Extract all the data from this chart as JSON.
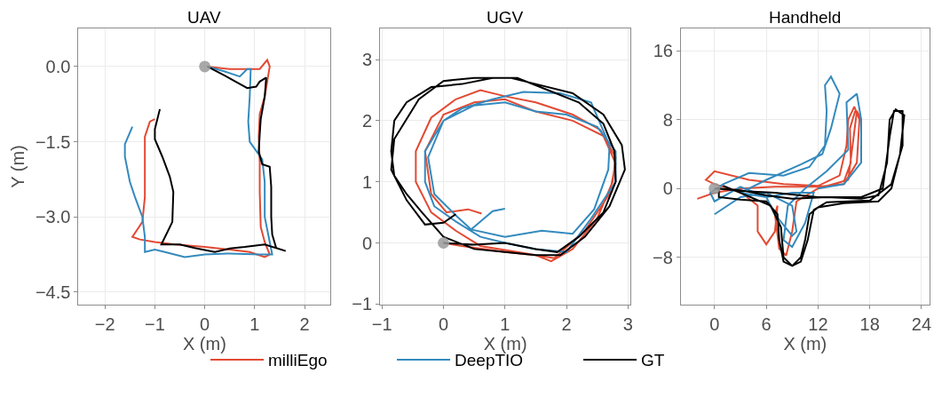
{
  "chart_data": [
    {
      "type": "line",
      "title": "UAV",
      "xlabel": "X (m)",
      "ylabel": "Y (m)",
      "xlim": [
        -2.53,
        2.52
      ],
      "ylim": [
        -4.75,
        0.76
      ],
      "xticks": [
        -2,
        -1,
        0,
        1,
        2
      ],
      "yticks": [
        -4.5,
        {
          "value": -3,
          "label": "−3.0"
        },
        -1.5,
        {
          "value": 0,
          "label": "0.0"
        }
      ],
      "grid": true,
      "legend": "bottom",
      "line_style": "solid",
      "series": [
        {
          "name": "milliEgo",
          "color": "#e24a33",
          "x": [
            0.05,
            0.5,
            0.9,
            1.1,
            1.25,
            1.3,
            1.2,
            1.1,
            1.08,
            1.1,
            1.1,
            1.12,
            1.2,
            1.3,
            1.2,
            0.9,
            0.5,
            0,
            -0.6,
            -1.0,
            -1.3,
            -1.45,
            -1.25,
            -1.2,
            -1.2,
            -1.2,
            -1.2,
            -1.1,
            -1.0
          ],
          "values": [
            0,
            -0.05,
            -0.05,
            -0.05,
            0.13,
            0,
            -0.6,
            -0.95,
            -1.4,
            -1.9,
            -2.5,
            -3.2,
            -3.5,
            -3.75,
            -3.8,
            -3.7,
            -3.65,
            -3.6,
            -3.55,
            -3.5,
            -3.45,
            -3.4,
            -3.1,
            -2.6,
            -2.1,
            -1.7,
            -1.4,
            -1.1,
            -1.05
          ]
        },
        {
          "name": "DeepTIO",
          "color": "#348abd",
          "x": [
            0.05,
            0.4,
            0.7,
            0.85,
            0.92,
            0.9,
            0.87,
            0.9,
            1.15,
            1.2,
            1.2,
            1.3,
            1.35,
            1.1,
            0.5,
            0,
            -0.4,
            -0.8,
            -1.0,
            -1.2,
            -1.2,
            -1.25,
            -1.4,
            -1.5,
            -1.6,
            -1.6,
            -1.45
          ],
          "values": [
            0,
            -0.1,
            -0.2,
            -0.05,
            -0.05,
            -0.6,
            -1.1,
            -1.5,
            -1.85,
            -2.3,
            -3.0,
            -3.5,
            -3.75,
            -3.75,
            -3.73,
            -3.75,
            -3.8,
            -3.7,
            -3.65,
            -3.7,
            -3.4,
            -3.0,
            -2.6,
            -2.3,
            -1.8,
            -1.55,
            -1.2
          ]
        },
        {
          "name": "GT",
          "color": "#000000",
          "x": [
            0.05,
            0.4,
            0.85,
            1.03,
            1.1,
            1.23,
            1.2,
            1.12,
            1.1,
            1.08,
            1.15,
            1.3,
            1.33,
            1.33,
            1.35,
            1.43,
            1.62,
            1.2,
            0.8,
            0.5,
            0.2,
            -0.2,
            -0.5,
            -0.87,
            -0.65,
            -0.63,
            -0.7,
            -0.85,
            -1.0,
            -1.0,
            -0.9
          ],
          "values": [
            0,
            -0.18,
            -0.43,
            -0.4,
            -0.3,
            -0.22,
            -0.6,
            -1.05,
            -1.35,
            -1.7,
            -1.95,
            -2.0,
            -2.4,
            -3.0,
            -3.35,
            -3.62,
            -3.68,
            -3.55,
            -3.6,
            -3.63,
            -3.7,
            -3.62,
            -3.55,
            -3.55,
            -3.1,
            -2.5,
            -2.2,
            -1.8,
            -1.45,
            -1.25,
            -0.85
          ]
        },
        {
          "type": "scatter",
          "color": "#9a9a9a",
          "x": [
            0
          ],
          "values": [
            0
          ]
        }
      ]
    },
    {
      "type": "line",
      "title": "UGV",
      "xlabel": "X (m)",
      "xlim": [
        -1.03,
        3.04
      ],
      "ylim": [
        -1.01,
        3.51
      ],
      "xticks": [
        -1,
        0,
        1,
        2,
        3
      ],
      "yticks": [
        -1,
        0,
        1,
        2,
        3
      ],
      "grid": true,
      "legend": "bottom",
      "line_style": "solid",
      "series": [
        {
          "name": "milliEgo",
          "color": "#e24a33",
          "x": [
            0,
            0.3,
            1.0,
            1.5,
            1.75,
            2.1,
            2.5,
            2.75,
            2.8,
            2.55,
            2.1,
            1.5,
            1.0,
            0.6,
            0.2,
            -0.2,
            -0.45,
            -0.45,
            -0.2,
            0.2,
            0.6,
            1.2,
            1.8,
            2.3,
            2.7,
            2.8,
            2.6,
            2.1,
            1.5,
            1.0,
            0.5,
            0,
            -0.3,
            -0.2,
            0.05,
            0.4,
            0.62
          ],
          "values": [
            0,
            -0.05,
            -0.15,
            -0.2,
            -0.3,
            -0.1,
            0.4,
            1.0,
            1.4,
            1.85,
            2.1,
            2.3,
            2.4,
            2.5,
            2.35,
            2.05,
            1.5,
            1.0,
            0.5,
            0.2,
            -0.05,
            -0.15,
            -0.25,
            0.2,
            0.8,
            1.3,
            1.75,
            2.0,
            2.15,
            2.35,
            2.3,
            2.1,
            1.5,
            0.8,
            0.5,
            0.55,
            0.48
          ]
        },
        {
          "name": "DeepTIO",
          "color": "#348abd",
          "x": [
            0.2,
            0.45,
            1.0,
            1.6,
            2.1,
            2.45,
            2.68,
            2.7,
            2.4,
            1.9,
            1.3,
            0.8,
            0.3,
            0,
            -0.3,
            -0.3,
            -0.15,
            0.2,
            0.6,
            1.0,
            1.5,
            2.0,
            2.4,
            2.8,
            2.8,
            2.5,
            2.0,
            1.5,
            1.0,
            0.5,
            0.0,
            -0.25,
            -0.15,
            0.2,
            0.45,
            0.6,
            0.8,
            1.0
          ],
          "values": [
            0.45,
            0.22,
            0.1,
            0.2,
            0.15,
            0.55,
            1.2,
            1.6,
            2.3,
            2.45,
            2.47,
            2.35,
            2.2,
            2.0,
            1.5,
            1.0,
            0.6,
            0.35,
            0.1,
            0.0,
            -0.1,
            -0.15,
            0.4,
            1.0,
            1.5,
            1.9,
            2.1,
            2.15,
            2.3,
            2.25,
            2.0,
            1.4,
            0.8,
            0.45,
            0.22,
            0.35,
            0.52,
            0.56
          ]
        },
        {
          "name": "GT",
          "color": "#000000",
          "x": [
            0,
            0.5,
            1.0,
            1.5,
            1.85,
            2.2,
            2.6,
            2.8,
            2.78,
            2.6,
            2.2,
            1.7,
            1.2,
            0.8,
            0.3,
            -0.2,
            -0.6,
            -0.8,
            -0.85,
            -0.8,
            -0.6,
            -0.35,
            0,
            0.5,
            1.0,
            1.5,
            1.9,
            2.3,
            2.7,
            2.95,
            2.9,
            2.6,
            2.1,
            1.5,
            1.1,
            0.5,
            0,
            -0.4,
            -0.8,
            -0.85,
            -0.6,
            -0.3,
            0,
            0.2
          ],
          "values": [
            0,
            -0.03,
            0,
            -0.1,
            -0.15,
            0.1,
            0.5,
            1.0,
            1.5,
            1.95,
            2.3,
            2.5,
            2.7,
            2.7,
            2.6,
            2.55,
            2.3,
            2.0,
            1.5,
            1.1,
            0.8,
            0.5,
            0.1,
            -0.1,
            -0.15,
            -0.2,
            -0.2,
            0.1,
            0.6,
            1.2,
            1.6,
            2.1,
            2.45,
            2.6,
            2.7,
            2.7,
            2.65,
            2.35,
            1.7,
            1.2,
            0.7,
            0.3,
            0.33,
            0.47
          ]
        },
        {
          "type": "scatter",
          "color": "#9a9a9a",
          "x": [
            0
          ],
          "values": [
            0
          ]
        }
      ]
    },
    {
      "type": "line",
      "title": "Handheld",
      "xlabel": "X (m)",
      "xlim": [
        -3.9,
        24.9
      ],
      "ylim": [
        -13.5,
        18.6
      ],
      "xticks": [
        0,
        6,
        12,
        18,
        24
      ],
      "yticks": [
        -8,
        0,
        8,
        16
      ],
      "grid": true,
      "legend": "bottom",
      "line_style": "solid",
      "series": [
        {
          "name": "milliEgo",
          "color": "#e24a33",
          "x": [
            -2,
            0,
            3,
            7,
            12,
            15,
            16.5,
            16.8,
            16.2,
            15.5,
            15.3,
            14.5,
            12,
            8,
            4,
            0,
            -1,
            0,
            3,
            5,
            5,
            6,
            7,
            7.3,
            7,
            7.5,
            8.3,
            9,
            9.5,
            12,
            15.5,
            16,
            16.5,
            17,
            16.3,
            15.7,
            15.8,
            15
          ],
          "values": [
            -1.2,
            -0.5,
            0,
            0.2,
            0.2,
            0.5,
            3,
            8,
            9.5,
            8,
            5,
            1.5,
            0.3,
            0.5,
            1,
            2,
            1,
            0.5,
            -0.4,
            -2,
            -5,
            -6.5,
            -5,
            -2,
            -3,
            -7,
            -7.8,
            -5,
            -1.5,
            0,
            1,
            5,
            9,
            8,
            9,
            7,
            3,
            0.8
          ]
        },
        {
          "name": "DeepTIO",
          "color": "#348abd",
          "x": [
            0,
            3,
            6,
            9,
            9.5,
            9,
            7,
            6,
            3,
            0,
            -0.5,
            1,
            4,
            8,
            11,
            12.8,
            13,
            12.8,
            13.5,
            14.5,
            13.5,
            12.5,
            10,
            6,
            3,
            6,
            9,
            11.5,
            10.5,
            9,
            8,
            8.5,
            10.5,
            13,
            15.5,
            15.3,
            16.5,
            17,
            17,
            15,
            12
          ],
          "values": [
            -3,
            -1,
            -0.5,
            -2,
            -5,
            -5.5,
            -3,
            -1,
            0.2,
            -1.5,
            -0.5,
            0.5,
            1.8,
            1.5,
            2.5,
            5,
            9,
            12,
            13,
            11,
            7,
            4,
            2.8,
            1,
            -0.5,
            -1,
            -0.5,
            -0.5,
            -4,
            -6.8,
            -6,
            -2,
            0,
            2,
            4.5,
            10,
            11,
            8,
            3,
            0.5,
            0
          ]
        },
        {
          "name": "GT",
          "color": "#000000",
          "x": [
            0,
            3,
            6,
            9,
            13,
            17,
            19,
            20,
            20.3,
            21,
            22,
            21.5,
            20.5,
            19,
            15,
            12,
            11,
            10.5,
            10,
            9,
            8,
            7.5,
            7.3,
            6,
            3,
            0.5,
            0.5,
            3,
            7,
            12,
            17,
            19.5,
            20.3,
            20.8,
            21.8,
            21.8,
            20.5,
            18,
            13,
            11.5,
            10.8,
            10,
            9,
            8,
            7.7,
            6.5,
            3,
            1
          ],
          "values": [
            0,
            -0.2,
            -0.8,
            -1.2,
            -1,
            -1.2,
            -0.8,
            3,
            8,
            9.2,
            8.5,
            4,
            0,
            -1.5,
            -1.7,
            -2.2,
            -3,
            -6,
            -8,
            -9,
            -8.5,
            -6,
            -3,
            -1.5,
            -1.3,
            -1,
            0,
            -0.3,
            -0.5,
            -1,
            -1,
            0,
            6,
            9,
            9,
            5,
            0.5,
            -1.4,
            -1.6,
            -2.5,
            -6,
            -8.5,
            -9,
            -8,
            -4.5,
            -2,
            -0.5,
            0.3
          ]
        },
        {
          "type": "scatter",
          "color": "#9a9a9a",
          "x": [
            0
          ],
          "values": [
            0
          ]
        }
      ]
    }
  ]
}
